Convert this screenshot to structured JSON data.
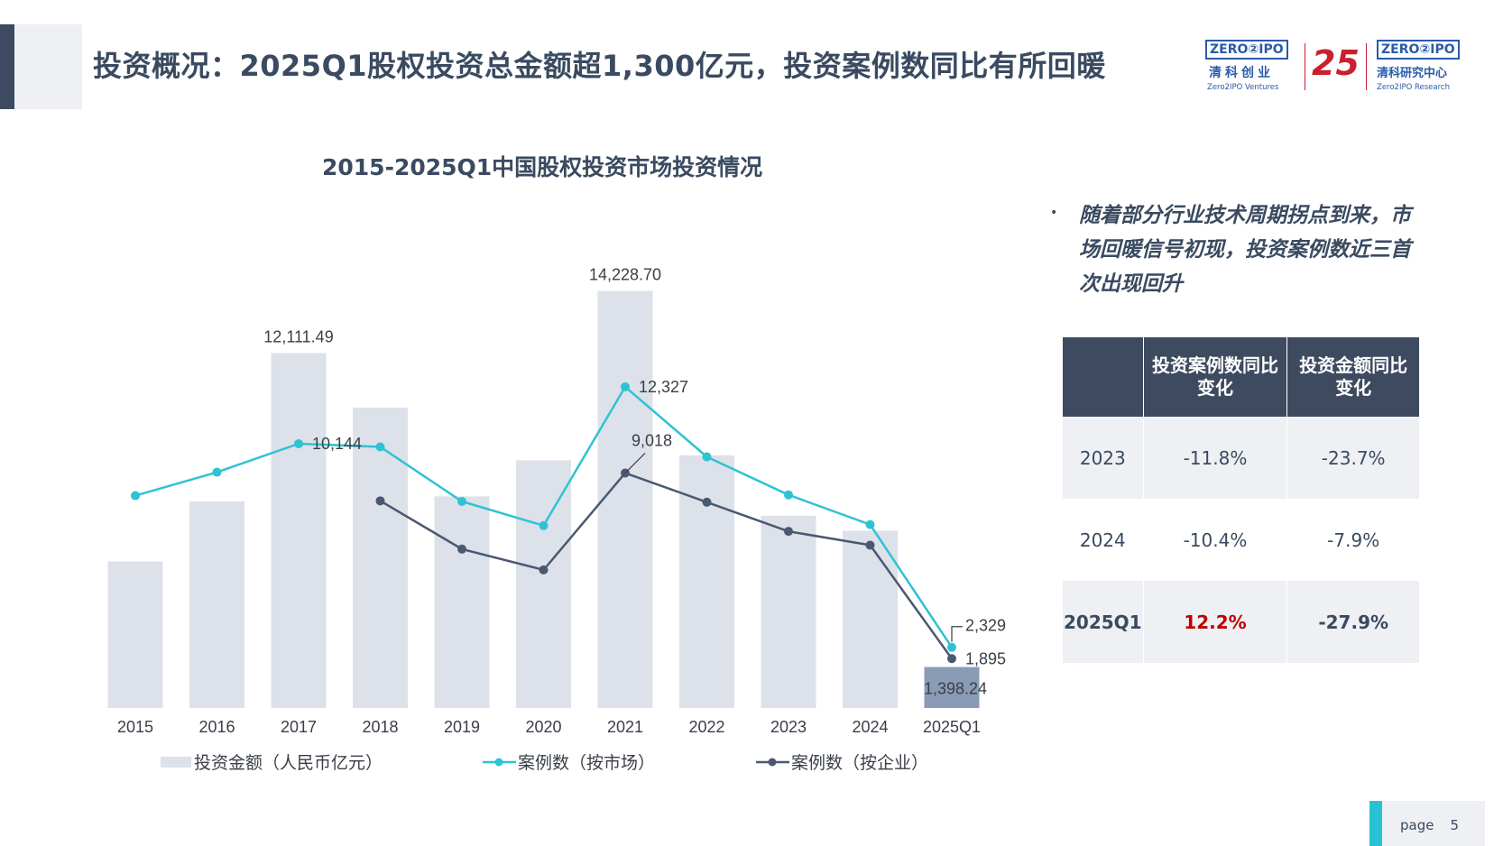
{
  "header": {
    "title": "投资概况：2025Q1股权投资总金额超1,300亿元，投资案例数同比有所回暖"
  },
  "logos": {
    "ventures": {
      "mark_left": "ZERO",
      "mark_right": "IPO",
      "cn": "清科创业",
      "en": "Zero2IPO Ventures"
    },
    "anniversary": "25",
    "research": {
      "mark_left": "ZERO",
      "mark_right": "IPO",
      "cn": "清科研究中心",
      "en": "Zero2IPO Research"
    }
  },
  "colors": {
    "bar": "#dde1ea",
    "bar_highlight": "#8a9bb5",
    "line_market": "#2ec3d3",
    "line_company": "#4a5870",
    "title": "#3a4a60",
    "positive": "#c00000"
  },
  "chart_data": {
    "type": "bar",
    "title": "2015-2025Q1中国股权投资市场投资情况",
    "categories": [
      "2015",
      "2016",
      "2017",
      "2018",
      "2019",
      "2020",
      "2021",
      "2022",
      "2023",
      "2024",
      "2025Q1"
    ],
    "series": [
      {
        "name": "投资金额（人民币亿元）",
        "type": "bar",
        "axis": "left",
        "values": [
          5000,
          7050,
          12111.49,
          10250,
          7220,
          8450,
          14228.7,
          8620,
          6560,
          6050,
          1398.24
        ],
        "labels": {
          "2": "12,111.49",
          "6": "14,228.70",
          "10": "1,398.24"
        }
      },
      {
        "name": "案例数（按市场）",
        "type": "line",
        "axis": "right",
        "values": [
          8150,
          9050,
          10144,
          10022,
          7928,
          7000,
          12327,
          9640,
          8180,
          7040,
          2329
        ],
        "labels": {
          "2": "10,144",
          "6": "12,327",
          "10": "2,329"
        }
      },
      {
        "name": "案例数（按企业）",
        "type": "line",
        "axis": "right",
        "values": [
          null,
          null,
          null,
          7950,
          6100,
          5300,
          9018,
          7900,
          6780,
          6250,
          1895
        ],
        "labels": {
          "6": "9,018",
          "10": "1,895"
        }
      }
    ],
    "ylim_left": [
      0,
      16000
    ],
    "ylim_right": [
      0,
      18000
    ],
    "legend_position": "bottom",
    "grid": false
  },
  "commentary": {
    "bullet": "随着部分行业技术周期拐点到来，市场回暖信号初现，投资案例数近三首次出现回升"
  },
  "table": {
    "headers": [
      "",
      "投资案例数同比变化",
      "投资金额同比变化"
    ],
    "rows": [
      {
        "period": "2023",
        "cases": "-11.8%",
        "amount": "-23.7%"
      },
      {
        "period": "2024",
        "cases": "-10.4%",
        "amount": "-7.9%"
      },
      {
        "period": "2025Q1",
        "cases": "12.2%",
        "amount": "-27.9%"
      }
    ]
  },
  "footer": {
    "label": "page",
    "number": "5"
  }
}
